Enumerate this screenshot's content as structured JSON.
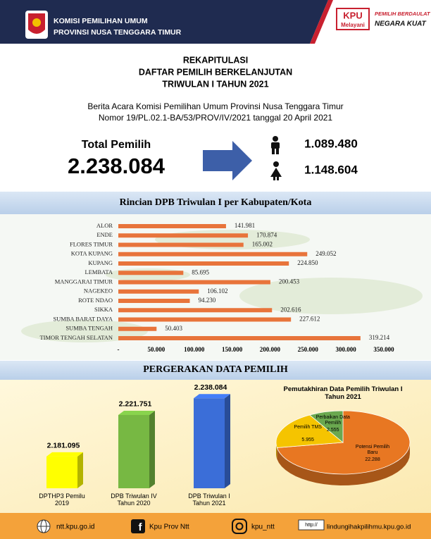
{
  "header": {
    "org": "KOMISI PEMILIHAN UMUM",
    "province": "PROVINSI NUSA TENGGARA TIMUR",
    "badge": "KPU",
    "badge_sub": "Melayani",
    "slogan_1": "PEMILIH BERDAULAT",
    "slogan_2": "NEGARA KUAT"
  },
  "titles": [
    "REKAPITULASI",
    "DAFTAR PEMILIH BERKELANJUTAN",
    "TRIWULAN I TAHUN 2021"
  ],
  "reference": [
    "Berita Acara Komisi Pemilihan Umum Provinsi Nusa Tenggara Timur",
    "Nomor 19/PL.02.1-BA/53/PROV/IV/2021 tanggal 20 April 2021"
  ],
  "summary": {
    "total_label": "Total Pemilih",
    "total": "2.238.084",
    "male": "1.089.480",
    "female": "1.148.604"
  },
  "chart_data": [
    {
      "type": "bar",
      "orientation": "horizontal",
      "title": "Rincian DPB Triwulan I per Kabupaten/Kota",
      "categories": [
        "ALOR",
        "ENDE",
        "FLORES TIMUR",
        "KOTA KUPANG",
        "KUPANG",
        "LEMBATA",
        "MANGGARAI TIMUR",
        "NAGEKEO",
        "ROTE NDAO",
        "SIKKA",
        "SUMBA BARAT DAYA",
        "SUMBA TENGAH",
        "TIMOR TENGAH SELATAN"
      ],
      "values": [
        141981,
        170874,
        165002,
        249052,
        224850,
        85695,
        200453,
        106102,
        94230,
        202616,
        227612,
        50403,
        319214
      ],
      "value_labels": [
        "141.981",
        "170.874",
        "165.002",
        "249.052",
        "224.850",
        "85.695",
        "200.453",
        "106.102",
        "94.230",
        "202.616",
        "227.612",
        "50.403",
        "319.214"
      ],
      "color": "#e8743b",
      "xlim": [
        0,
        350000
      ],
      "xticks": [
        {
          "value": 0,
          "label": "-"
        },
        {
          "value": 50000,
          "label": "50.000"
        },
        {
          "value": 100000,
          "label": "100.000"
        },
        {
          "value": 150000,
          "label": "150.000"
        },
        {
          "value": 200000,
          "label": "200.000"
        },
        {
          "value": 250000,
          "label": "250.000"
        },
        {
          "value": 300000,
          "label": "300.000"
        },
        {
          "value": 350000,
          "label": "350.000"
        }
      ],
      "grid": false
    },
    {
      "type": "bar",
      "orientation": "vertical",
      "title": "PERGERAKAN DATA PEMILIH",
      "categories": [
        "DPTHP3 Pemilu 2019",
        "DPB Triwulan IV Tahun 2020",
        "DPB Triwulan I Tahun 2021"
      ],
      "values": [
        2181095,
        2221751,
        2238084
      ],
      "value_labels": [
        "2.181.095",
        "2.221.751",
        "2.238.084"
      ],
      "colors": [
        "#ffff00",
        "#77b843",
        "#3b6ed8"
      ],
      "ylim": [
        2150000,
        2250000
      ]
    },
    {
      "type": "pie",
      "title": "Pemutakhiran Data Pemilih Triwulan I Tahun 2021",
      "categories": [
        "Potensi Pemilih Baru",
        "Pemilih TMS",
        "Perbaikan Data Pemilih"
      ],
      "values": [
        22288,
        5955,
        2555
      ],
      "value_labels": [
        "22.288",
        "5.955",
        "2.555"
      ],
      "colors": [
        "#e87722",
        "#f5c400",
        "#6aa84f"
      ]
    }
  ],
  "footer": {
    "website": "ntt.kpu.go.id",
    "facebook": "Kpu Prov Ntt",
    "instagram": "kpu_ntt",
    "url_icon": "http://",
    "campaign": "lindungihakpilihmu.kpu.go.id"
  }
}
